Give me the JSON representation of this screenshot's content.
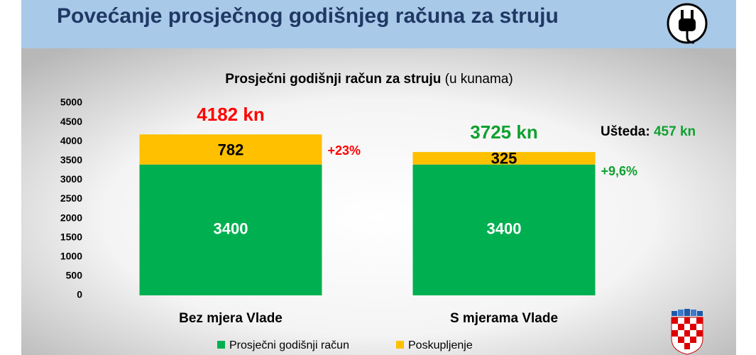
{
  "header": {
    "title": "Povećanje prosječnog godišnjeg računa za struju"
  },
  "chart_data": {
    "type": "stacked_bar",
    "title": "Prosječni godišnji račun za struju",
    "title_note": "(u kunama)",
    "categories": [
      "Bez mjera Vlade",
      "S mjerama Vlade"
    ],
    "series": [
      {
        "name": "Prosječni godišnji račun",
        "color": "#00b050",
        "values": [
          3400,
          3400
        ]
      },
      {
        "name": "Poskupljenje",
        "color": "#ffc000",
        "values": [
          782,
          325
        ]
      }
    ],
    "ylim": [
      0,
      5000
    ],
    "yticks": [
      0,
      500,
      1000,
      1500,
      2000,
      2500,
      3000,
      3500,
      4000,
      4500,
      5000
    ],
    "total_labels": [
      "4182 kn",
      "3725 kn"
    ],
    "change_labels": [
      "+23%",
      "+9,6%"
    ],
    "savings_label": "Ušteda:",
    "savings_value": "457 kn",
    "legend": "bottom"
  }
}
